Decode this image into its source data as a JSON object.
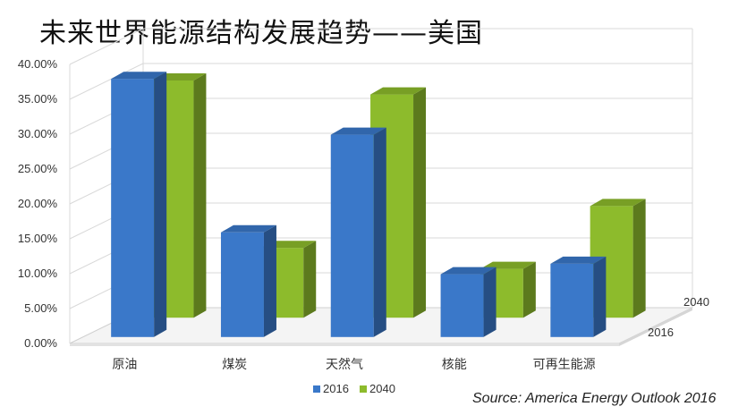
{
  "title": "未来世界能源结构发展趋势——美国",
  "source": "Source: America Energy Outlook 2016",
  "chart_data": {
    "type": "bar",
    "title": "未来世界能源结构发展趋势——美国",
    "categories": [
      "原油",
      "煤炭",
      "天然气",
      "核能",
      "可再生能源"
    ],
    "series": [
      {
        "name": "2016",
        "values": [
          0.37,
          0.15,
          0.29,
          0.09,
          0.105
        ],
        "color": "#3a78c9"
      },
      {
        "name": "2040",
        "values": [
          0.34,
          0.1,
          0.32,
          0.07,
          0.16
        ],
        "color": "#8dbb2c"
      }
    ],
    "ylim": [
      0,
      0.4
    ],
    "yticks": [
      "0.00%",
      "5.00%",
      "10.00%",
      "15.00%",
      "20.00%",
      "25.00%",
      "30.00%",
      "35.00%",
      "40.00%"
    ],
    "depth_labels": [
      "2016",
      "2040"
    ],
    "grid": true,
    "legend": "bottom",
    "style": "3d-column"
  }
}
